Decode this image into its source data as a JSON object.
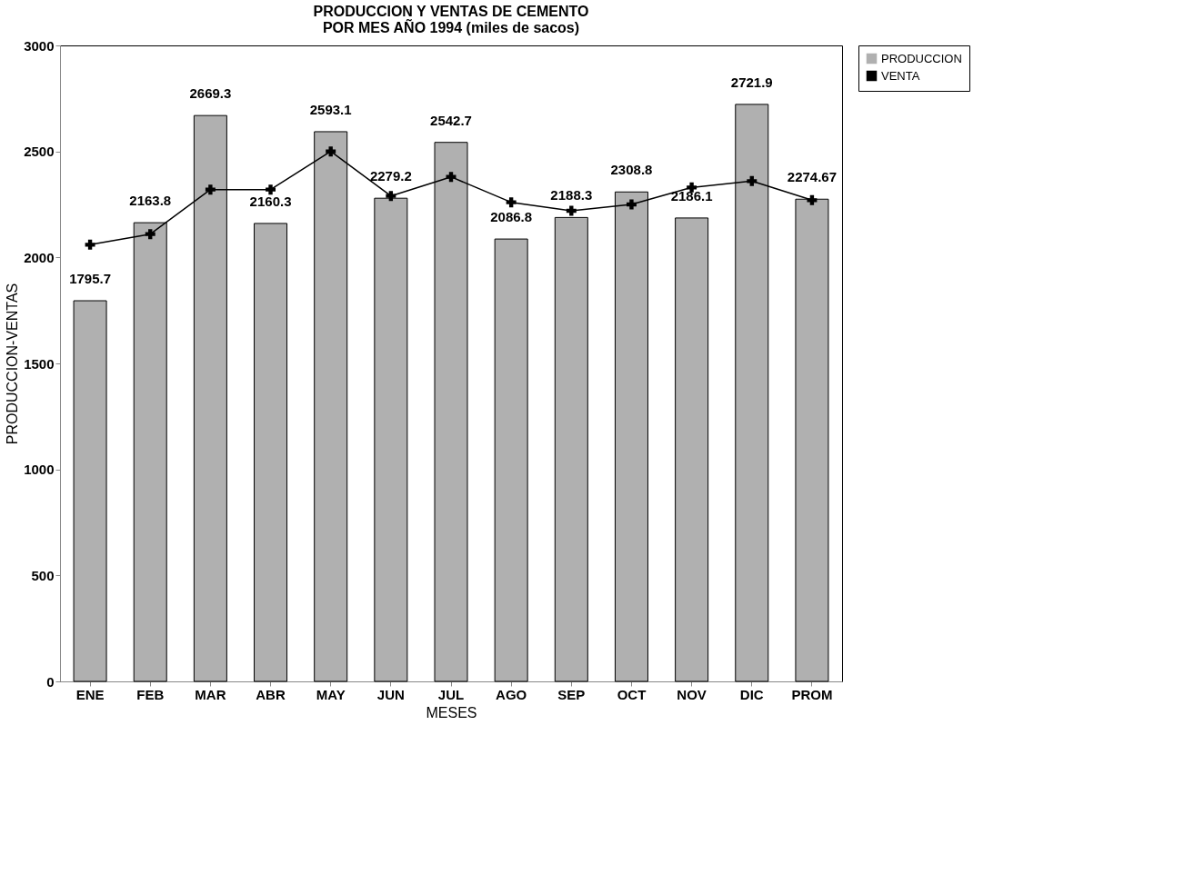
{
  "chart_data": {
    "type": "bar",
    "title": "PRODUCCION Y VENTAS DE CEMENTO\nPOR MES AÑO 1994 (miles de sacos)",
    "xlabel": "MESES",
    "ylabel": "PRODUCCION-VENTAS",
    "categories": [
      "ENE",
      "FEB",
      "MAR",
      "ABR",
      "MAY",
      "JUN",
      "JUL",
      "AGO",
      "SEP",
      "OCT",
      "NOV",
      "DIC",
      "PROM"
    ],
    "series": [
      {
        "name": "PRODUCCION",
        "color": "#b0b0b0",
        "values": [
          1795.7,
          2163.8,
          2669.3,
          2160.3,
          2593.1,
          2279.2,
          2542.7,
          2086.8,
          2188.3,
          2308.8,
          2186.1,
          2721.9,
          2274.67
        ],
        "value_labels": [
          "1795.7",
          "2163.8",
          "2669.3",
          "2160.3",
          "2593.1",
          "2279.2",
          "2542.7",
          "2086.8",
          "2188.3",
          "2308.8",
          "2186.1",
          "2721.9",
          "2274.67"
        ]
      },
      {
        "name": "VENTA",
        "type": "line",
        "color": "#000000",
        "marker": "cross",
        "line_style": "solid",
        "values": [
          2060,
          2110,
          2320,
          2320,
          2500,
          2290,
          2380,
          2260,
          2220,
          2250,
          2330,
          2360,
          2270
        ]
      }
    ],
    "ylim": [
      0,
      3000
    ],
    "yticks": [
      0,
      500,
      1000,
      1500,
      2000,
      2500,
      3000
    ],
    "grid": false,
    "legend": "top right"
  }
}
